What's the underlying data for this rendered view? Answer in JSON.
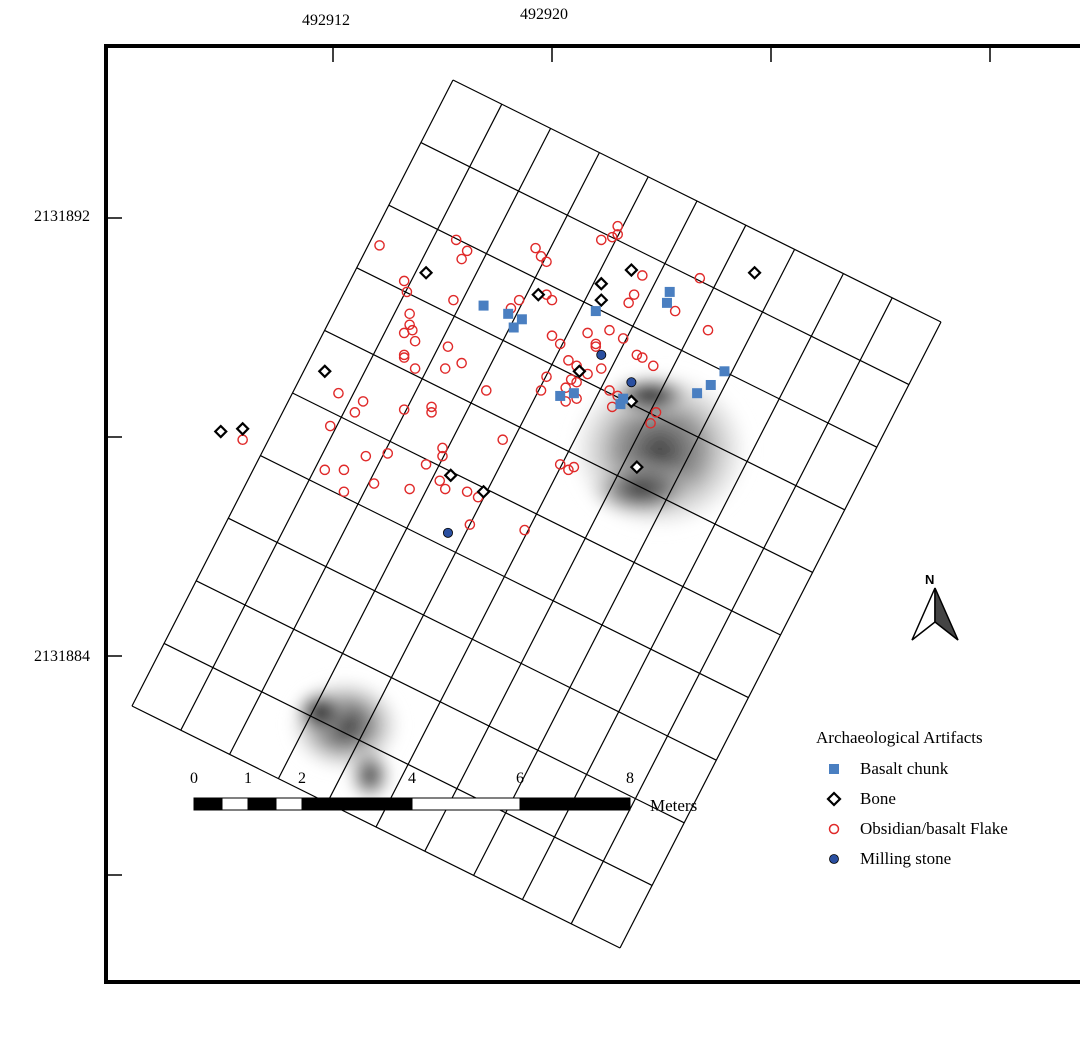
{
  "map": {
    "x_labels": [
      "492912",
      "492920"
    ],
    "y_labels": [
      "2131892",
      "2131884"
    ],
    "north_label": "N"
  },
  "legend": {
    "title": "Archaeological Artifacts",
    "items": [
      {
        "label": "Basalt chunk",
        "symbol": "square",
        "color": "#4a7fc1"
      },
      {
        "label": "Bone",
        "symbol": "diamond",
        "color": "#000000"
      },
      {
        "label": "Obsidian/basalt Flake",
        "symbol": "circle-open",
        "color": "#e02a2a"
      },
      {
        "label": "Milling stone",
        "symbol": "circle-filled",
        "color": "#2a4fa0"
      }
    ]
  },
  "scale_bar": {
    "labels": [
      "0",
      "1",
      "2",
      "4",
      "6",
      "8"
    ],
    "units": "Meters"
  },
  "chart_data": {
    "type": "scatter",
    "title": "",
    "x_ticks": [
      "492912",
      "492920"
    ],
    "y_ticks": [
      "2131892",
      "2131884"
    ],
    "series": [
      {
        "name": "Basalt chunk",
        "points": [
          [
            492917.5,
            2131888.8
          ],
          [
            492918.4,
            2131888.5
          ],
          [
            492918.9,
            2131888.3
          ],
          [
            492918.6,
            2131888.0
          ],
          [
            492921.6,
            2131888.6
          ],
          [
            492924.2,
            2131888.9
          ],
          [
            492924.3,
            2131889.3
          ],
          [
            492920.3,
            2131885.5
          ],
          [
            492920.8,
            2131885.6
          ],
          [
            492922.6,
            2131885.4
          ],
          [
            492922.5,
            2131885.2
          ],
          [
            492925.3,
            2131885.6
          ],
          [
            492925.8,
            2131885.9
          ],
          [
            492926.3,
            2131886.4
          ]
        ]
      },
      {
        "name": "Bone",
        "points": [
          [
            492915.4,
            2131890.0
          ],
          [
            492919.5,
            2131889.2
          ],
          [
            492921.8,
            2131889.6
          ],
          [
            492921.8,
            2131889.0
          ],
          [
            492922.9,
            2131890.1
          ],
          [
            492921.0,
            2131886.4
          ],
          [
            492907.9,
            2131884.2
          ],
          [
            492908.7,
            2131884.3
          ],
          [
            492911.7,
            2131886.4
          ],
          [
            492916.3,
            2131882.6
          ],
          [
            492917.5,
            2131882.0
          ],
          [
            492923.1,
            2131882.9
          ],
          [
            492927.4,
            2131890.0
          ],
          [
            492922.9,
            2131885.3
          ]
        ]
      },
      {
        "name": "Obsidian/basalt Flake",
        "points": [
          [
            492916.5,
            2131891.2
          ],
          [
            492916.9,
            2131890.8
          ],
          [
            492916.7,
            2131890.5
          ],
          [
            492913.7,
            2131891.0
          ],
          [
            492914.7,
            2131889.3
          ],
          [
            492914.6,
            2131889.7
          ],
          [
            492914.8,
            2131888.5
          ],
          [
            492914.8,
            2131888.1
          ],
          [
            492914.9,
            2131887.9
          ],
          [
            492914.6,
            2131887.8
          ],
          [
            492914.6,
            2131886.9
          ],
          [
            492915.0,
            2131887.5
          ],
          [
            492916.2,
            2131887.3
          ],
          [
            492916.7,
            2131886.7
          ],
          [
            492916.4,
            2131889.0
          ],
          [
            492918.5,
            2131888.7
          ],
          [
            492918.8,
            2131889.0
          ],
          [
            492920.0,
            2131887.7
          ],
          [
            492920.3,
            2131887.4
          ],
          [
            492921.3,
            2131887.8
          ],
          [
            492921.6,
            2131887.3
          ],
          [
            492922.1,
            2131887.9
          ],
          [
            492921.8,
            2131891.2
          ],
          [
            492922.2,
            2131891.3
          ],
          [
            492922.4,
            2131891.4
          ],
          [
            492922.4,
            2131891.7
          ],
          [
            492923.3,
            2131889.9
          ],
          [
            492925.4,
            2131889.8
          ],
          [
            492923.0,
            2131889.2
          ],
          [
            492922.8,
            2131888.9
          ],
          [
            492924.5,
            2131888.6
          ],
          [
            492925.7,
            2131887.9
          ],
          [
            492919.4,
            2131890.9
          ],
          [
            492919.6,
            2131890.6
          ],
          [
            492919.8,
            2131890.4
          ],
          [
            492921.6,
            2131887.4
          ],
          [
            492923.1,
            2131887.0
          ],
          [
            492923.3,
            2131886.9
          ],
          [
            492923.7,
            2131886.6
          ],
          [
            492922.6,
            2131887.6
          ],
          [
            492921.8,
            2131886.5
          ],
          [
            492921.3,
            2131886.3
          ],
          [
            492920.9,
            2131886.0
          ],
          [
            492920.7,
            2131886.1
          ],
          [
            492920.5,
            2131885.8
          ],
          [
            492920.9,
            2131885.4
          ],
          [
            492922.1,
            2131885.7
          ],
          [
            492922.4,
            2131885.5
          ],
          [
            492922.2,
            2131885.1
          ],
          [
            492923.8,
            2131884.9
          ],
          [
            492923.6,
            2131884.5
          ],
          [
            492919.8,
            2131886.2
          ],
          [
            492920.6,
            2131886.8
          ],
          [
            492920.9,
            2131886.6
          ],
          [
            492919.6,
            2131885.7
          ],
          [
            492920.5,
            2131885.3
          ],
          [
            492912.2,
            2131885.6
          ],
          [
            492912.8,
            2131884.9
          ],
          [
            492914.6,
            2131885.0
          ],
          [
            492913.1,
            2131885.3
          ],
          [
            492915.6,
            2131885.1
          ],
          [
            492915.6,
            2131884.9
          ],
          [
            492911.9,
            2131884.4
          ],
          [
            492908.7,
            2131883.9
          ],
          [
            492911.7,
            2131882.8
          ],
          [
            492912.4,
            2131882.8
          ],
          [
            492912.4,
            2131882.0
          ],
          [
            492913.2,
            2131883.3
          ],
          [
            492913.5,
            2131882.3
          ],
          [
            492914.8,
            2131882.1
          ],
          [
            492915.4,
            2131883.0
          ],
          [
            492915.9,
            2131882.4
          ],
          [
            492916.1,
            2131882.1
          ],
          [
            492916.9,
            2131882.0
          ],
          [
            492917.3,
            2131881.8
          ],
          [
            492917.0,
            2131880.8
          ],
          [
            492918.2,
            2131883.9
          ],
          [
            492920.3,
            2131883.0
          ],
          [
            492920.8,
            2131882.9
          ],
          [
            492920.6,
            2131882.8
          ],
          [
            492919.0,
            2131880.6
          ],
          [
            492915.0,
            2131886.5
          ],
          [
            492916.1,
            2131886.5
          ],
          [
            492914.6,
            2131887.0
          ],
          [
            492916.0,
            2131883.3
          ],
          [
            492916.0,
            2131883.6
          ],
          [
            492919.8,
            2131889.2
          ],
          [
            492920.0,
            2131889.0
          ],
          [
            492917.6,
            2131885.7
          ],
          [
            492914.0,
            2131883.4
          ]
        ]
      },
      {
        "name": "Milling stone",
        "points": [
          [
            492921.8,
            2131887.0
          ],
          [
            492922.9,
            2131886.0
          ],
          [
            492916.2,
            2131880.5
          ]
        ]
      }
    ]
  }
}
